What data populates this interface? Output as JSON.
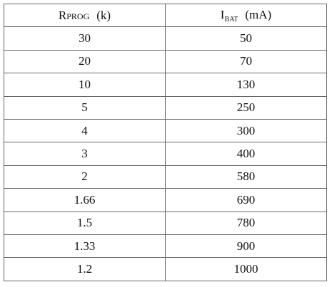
{
  "table": {
    "headers": [
      {
        "main": "R",
        "sub": "PROG",
        "unit": "(k)"
      },
      {
        "main": "I",
        "sub": "BAT",
        "unit": "(mA)"
      }
    ],
    "rows": [
      [
        30,
        50
      ],
      [
        20,
        70
      ],
      [
        10,
        130
      ],
      [
        5,
        250
      ],
      [
        4,
        300
      ],
      [
        3,
        400
      ],
      [
        2,
        580
      ],
      [
        1.66,
        690
      ],
      [
        1.5,
        780
      ],
      [
        1.33,
        900
      ],
      [
        1.2,
        1000
      ]
    ]
  }
}
